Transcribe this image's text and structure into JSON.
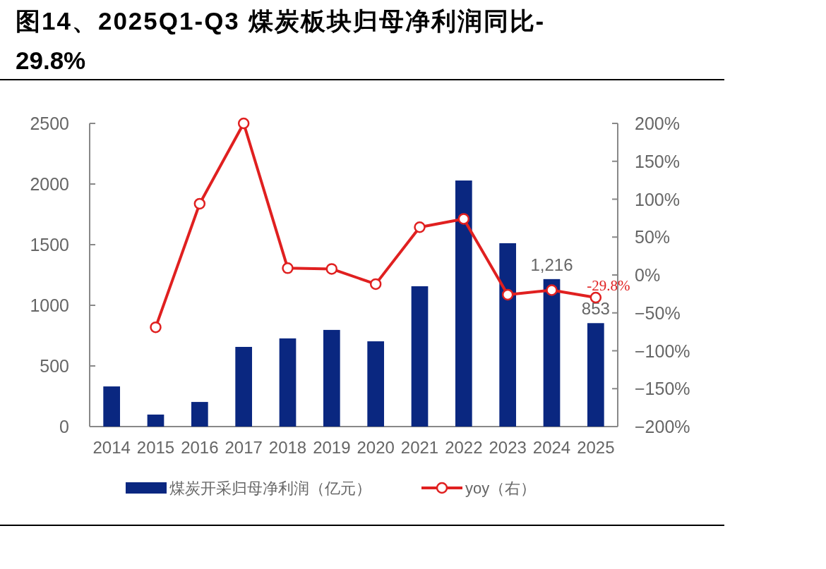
{
  "chart_data": {
    "type": "bar",
    "title": "图14、2025Q1-Q3  煤炭板块归母净利润同比-29.8%",
    "categories": [
      "2014",
      "2015",
      "2016",
      "2017",
      "2018",
      "2019",
      "2020",
      "2021",
      "2022",
      "2023",
      "2024",
      "2025"
    ],
    "series": [
      {
        "name": "煤炭开采归母净利润（亿元）",
        "color": "#0a2780",
        "values": [
          331,
          99,
          203,
          657,
          727,
          797,
          703,
          1157,
          2029,
          1512,
          1216,
          853
        ],
        "value_labels": [
          null,
          null,
          null,
          null,
          null,
          null,
          null,
          null,
          null,
          null,
          "1,216",
          "853"
        ]
      },
      {
        "name": "yoy（右）",
        "type": "line",
        "axis": "y2",
        "color": "#e02020",
        "marker": "circle",
        "values": [
          null,
          -69,
          94,
          200,
          9,
          8,
          -12,
          63,
          74,
          -26,
          -20,
          -29.8
        ],
        "value_labels": [
          null,
          null,
          null,
          null,
          null,
          null,
          null,
          null,
          null,
          null,
          null,
          "-29.8%"
        ]
      }
    ],
    "ylim": [
      0,
      2500
    ],
    "yticks": [
      0,
      500,
      1000,
      1500,
      2000,
      2500
    ],
    "y2lim": [
      -200,
      200
    ],
    "y2ticks": [
      {
        "value": -200,
        "label": "−200%"
      },
      {
        "value": -150,
        "label": "−150%"
      },
      {
        "value": -100,
        "label": "−100%"
      },
      {
        "value": -50,
        "label": "−50%"
      },
      {
        "value": 0,
        "label": "0%"
      },
      {
        "value": 50,
        "label": "50%"
      },
      {
        "value": 100,
        "label": "100%"
      },
      {
        "value": 150,
        "label": "150%"
      },
      {
        "value": 200,
        "label": "200%"
      }
    ],
    "legend": "bottom"
  }
}
